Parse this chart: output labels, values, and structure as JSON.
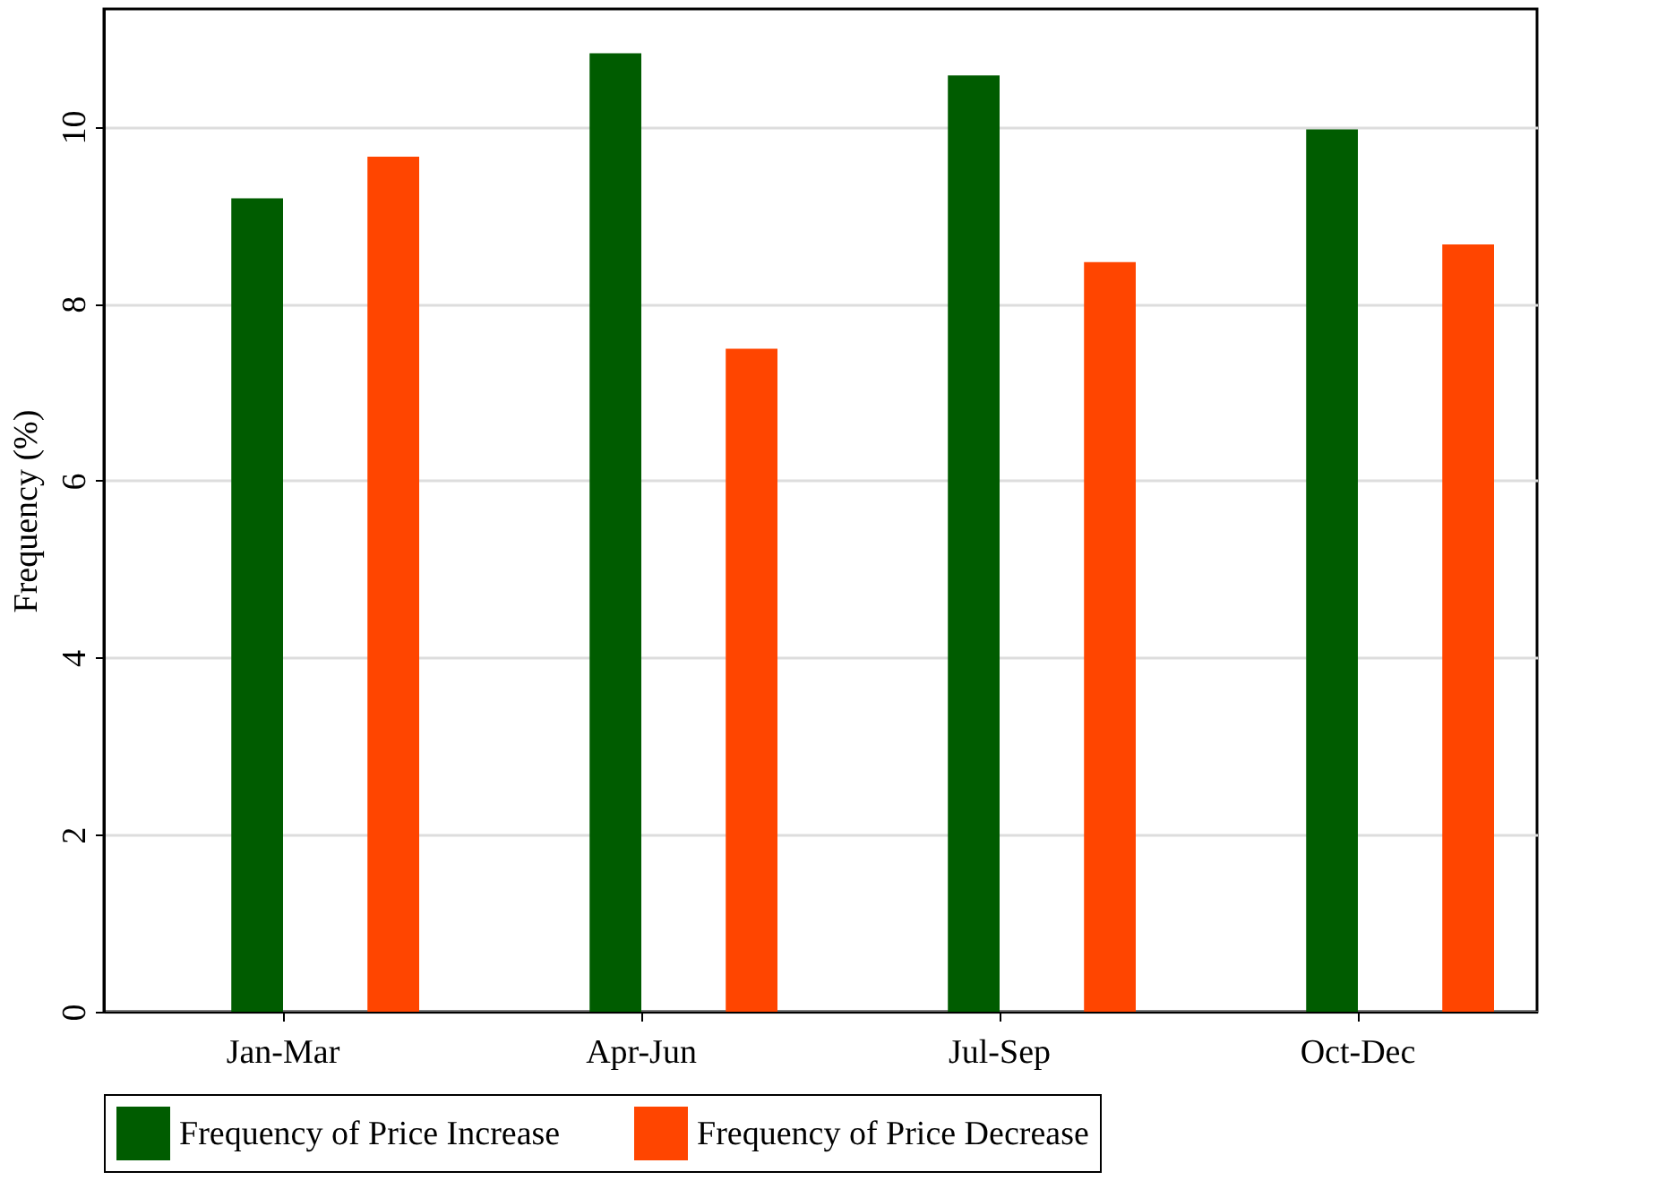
{
  "chart_data": {
    "type": "bar",
    "ylabel": "Frequency (%)",
    "categories": [
      "Jan-Mar",
      "Apr-Jun",
      "Jul-Sep",
      "Oct-Dec"
    ],
    "series": [
      {
        "name": "Frequency of Price Increase",
        "color": "#005c00",
        "values": [
          9.19,
          10.83,
          10.58,
          9.97
        ]
      },
      {
        "name": "Frequency of Price Decrease",
        "color": "#ff4500",
        "values": [
          9.66,
          7.49,
          8.47,
          8.67
        ]
      }
    ],
    "ylim": [
      0,
      11.33
    ],
    "yticks": [
      0,
      2,
      4,
      6,
      8,
      10
    ],
    "grid": "y",
    "legend": "bottom"
  }
}
